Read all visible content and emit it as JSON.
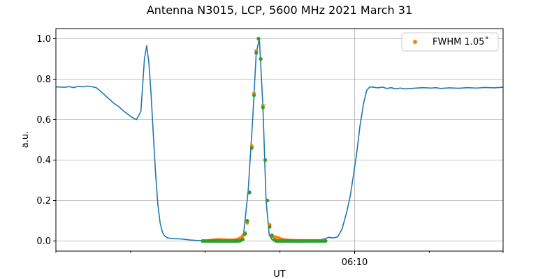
{
  "chart_data": {
    "type": "line",
    "title": "Antenna N3015, LCP, 5600 MHz 2021 March 31",
    "xlabel": "UT",
    "ylabel": "a.u.",
    "ylim": [
      -0.05,
      1.05
    ],
    "yticks": [
      "0.0",
      "0.2",
      "0.4",
      "0.6",
      "0.8",
      "1.0"
    ],
    "xlim": [
      0,
      100
    ],
    "xtick_major": [
      {
        "pos": 66.8,
        "label": "06:10"
      }
    ],
    "xtick_minor": [
      0,
      16.7,
      33.4,
      50.1,
      83.5,
      100
    ],
    "grid": true,
    "legend": {
      "placement": "top-right",
      "entries": [
        {
          "label": "FWHM 1.05$^\\circ$",
          "display": "FWHM 1.05˚",
          "color": "#ff7f0e"
        }
      ]
    },
    "colors": {
      "line": "#1f77b4",
      "fwhm": "#ff7f0e",
      "fit": "#2ca02c",
      "grid": "#b0b0b0"
    },
    "series": [
      {
        "name": "",
        "style": "line",
        "color": "#1f77b4",
        "x": [
          0,
          2,
          3,
          4,
          5,
          6,
          7,
          8,
          9,
          10,
          11,
          12,
          13,
          14,
          15,
          16,
          17,
          18,
          19,
          19.8,
          20.3,
          20.8,
          21.3,
          21.8,
          22.3,
          22.8,
          23.3,
          23.8,
          24.3,
          25,
          26,
          27,
          28,
          30,
          32,
          33,
          34,
          35,
          36,
          37,
          38,
          39,
          40,
          41,
          42,
          43,
          44,
          44.8,
          45.5,
          46.3,
          47,
          47.7,
          48.3,
          48.8,
          49.3,
          50,
          51,
          52,
          53,
          54,
          55,
          56,
          57,
          58,
          59,
          60,
          61,
          62,
          63,
          64,
          65,
          65.8,
          66.5,
          67.3,
          68,
          68.8,
          69.5,
          70.2,
          71,
          72,
          73,
          74,
          75,
          76,
          77,
          78,
          80,
          82,
          84,
          85,
          86,
          88,
          90,
          92,
          94,
          96,
          98,
          100
        ],
        "y": [
          0.762,
          0.76,
          0.763,
          0.758,
          0.765,
          0.762,
          0.766,
          0.763,
          0.758,
          0.74,
          0.72,
          0.7,
          0.68,
          0.665,
          0.645,
          0.628,
          0.612,
          0.6,
          0.64,
          0.9,
          0.965,
          0.88,
          0.72,
          0.52,
          0.33,
          0.18,
          0.09,
          0.045,
          0.025,
          0.015,
          0.012,
          0.011,
          0.01,
          0.005,
          0.002,
          0.002,
          0.002,
          0.003,
          0.003,
          0.003,
          0.003,
          0.004,
          0.005,
          0.01,
          0.04,
          0.25,
          0.6,
          0.93,
          1.0,
          0.66,
          0.2,
          0.03,
          0.008,
          0.004,
          0.002,
          0.001,
          0.001,
          0.001,
          0.001,
          0.0,
          0.0,
          0.0,
          0.002,
          0.003,
          0.005,
          0.01,
          0.018,
          0.015,
          0.02,
          0.06,
          0.14,
          0.22,
          0.32,
          0.44,
          0.57,
          0.68,
          0.745,
          0.762,
          0.76,
          0.757,
          0.761,
          0.754,
          0.758,
          0.752,
          0.756,
          0.752,
          0.755,
          0.758,
          0.756,
          0.758,
          0.754,
          0.757,
          0.755,
          0.758,
          0.756,
          0.759,
          0.757,
          0.76
        ]
      },
      {
        "name": "FWHM 1.05˚",
        "style": "scatter",
        "color": "#ff7f0e",
        "x": [
          32.8,
          33.3,
          33.8,
          34.3,
          34.8,
          35.3,
          35.8,
          36.3,
          36.8,
          37.3,
          37.8,
          38.3,
          38.8,
          39.3,
          39.8,
          40.3,
          40.8,
          41.3,
          41.8,
          42.3,
          42.8,
          43.3,
          43.8,
          44.3,
          44.8,
          45.3,
          45.8,
          46.3,
          46.8,
          47.3,
          47.8,
          48.3,
          48.8,
          49.3,
          49.8,
          50.3,
          50.8,
          51.3,
          51.8,
          52.3,
          52.8,
          53.3,
          53.8,
          54.3,
          54.8,
          55.3,
          55.8,
          56.3,
          56.8,
          57.3,
          57.8,
          58.3,
          58.8,
          59.3,
          59.8,
          60.3
        ],
        "y": [
          0.0,
          0.0,
          0.0,
          0.002,
          0.003,
          0.005,
          0.006,
          0.006,
          0.006,
          0.005,
          0.005,
          0.004,
          0.004,
          0.004,
          0.005,
          0.006,
          0.01,
          0.015,
          0.025,
          0.04,
          0.09,
          0.24,
          0.47,
          0.73,
          0.94,
          1.0,
          0.9,
          0.67,
          0.4,
          0.2,
          0.08,
          0.03,
          0.02,
          0.018,
          0.015,
          0.01,
          0.007,
          0.005,
          0.004,
          0.003,
          0.002,
          0.002,
          0.001,
          0.001,
          0.001,
          0.001,
          0.001,
          0.001,
          0.001,
          0.001,
          0.001,
          0.001,
          0.001,
          0.001,
          0.001,
          0.001
        ]
      },
      {
        "name": "",
        "style": "scatter",
        "color": "#2ca02c",
        "x": [
          32.8,
          33.3,
          33.8,
          34.3,
          34.8,
          35.3,
          35.8,
          36.3,
          36.8,
          37.3,
          37.8,
          38.3,
          38.8,
          39.3,
          39.8,
          40.3,
          40.8,
          41.3,
          41.8,
          42.3,
          42.8,
          43.3,
          43.8,
          44.3,
          44.8,
          45.3,
          45.8,
          46.3,
          46.8,
          47.3,
          47.8,
          48.3,
          48.8,
          49.3,
          49.8,
          50.3,
          50.8,
          51.3,
          51.8,
          52.3,
          52.8,
          53.3,
          53.8,
          54.3,
          54.8,
          55.3,
          55.8,
          56.3,
          56.8,
          57.3,
          57.8,
          58.3,
          58.8,
          59.3,
          59.8,
          60.3
        ],
        "y": [
          0.0,
          0.0,
          0.0,
          0.0,
          0.0,
          0.0,
          0.0,
          0.0,
          0.0,
          0.0,
          0.0,
          0.0,
          0.0,
          0.0,
          0.0,
          0.0,
          0.0,
          0.002,
          0.008,
          0.035,
          0.1,
          0.24,
          0.46,
          0.72,
          0.93,
          1.0,
          0.9,
          0.66,
          0.4,
          0.2,
          0.07,
          0.025,
          0.005,
          0.0,
          0.0,
          0.0,
          0.0,
          0.0,
          0.0,
          0.0,
          0.0,
          0.0,
          0.0,
          0.0,
          0.0,
          0.0,
          0.0,
          0.0,
          0.0,
          0.0,
          0.0,
          0.0,
          0.0,
          0.0,
          0.0,
          0.0
        ]
      }
    ]
  }
}
